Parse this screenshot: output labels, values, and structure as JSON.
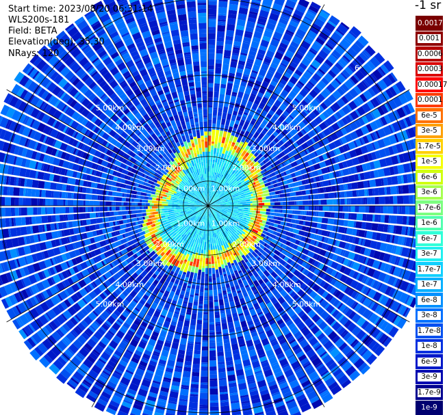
{
  "header": {
    "start_time": "Start time: 2023/08/20 06:31:14",
    "instrument": "WLS200s-181",
    "field": "Field: BETA",
    "elevation": "Elevation(deg): 35.30",
    "nrays": "NRays: 120"
  },
  "colorbar": {
    "title": "-1 sr",
    "labels": [
      "0.0017",
      "0.001",
      "0.0006",
      "0.0003",
      "0.00017",
      "0.0001",
      "6e-5",
      "3e-5",
      "1.7e-5",
      "1e-5",
      "6e-6",
      "3e-6",
      "1.7e-6",
      "1e-6",
      "6e-7",
      "3e-7",
      "1.7e-7",
      "1e-7",
      "6e-8",
      "3e-8",
      "1.7e-8",
      "1e-8",
      "6e-9",
      "3e-9",
      "1.7e-9",
      "1e-9"
    ],
    "colors": [
      "#7a0000",
      "#8e0000",
      "#b40000",
      "#da0000",
      "#ff0000",
      "#ff3a00",
      "#ff7000",
      "#ffa000",
      "#ffd000",
      "#f5ff00",
      "#d0ff10",
      "#a6ff50",
      "#7cff80",
      "#50ffb0",
      "#30ffd8",
      "#20f0f0",
      "#10d0ff",
      "#00b0ff",
      "#0090ff",
      "#0070ff",
      "#0050f0",
      "#0030e0",
      "#0018c8",
      "#0008b0",
      "#000090",
      "#000070"
    ]
  },
  "chart_data": {
    "type": "heatmap",
    "title": "",
    "field": "BETA",
    "units": "sr-1",
    "scale": "log",
    "value_range": [
      1e-09,
      0.0017
    ],
    "n_rays": 120,
    "elevation_deg": 35.3,
    "range_rings_labels": [
      "1.00km",
      "2.00km",
      "3.00km",
      "4.00km",
      "5.00km",
      "6"
    ],
    "range_rings_km": [
      1,
      2,
      3,
      4,
      5
    ],
    "spokes_deg": [
      0,
      30,
      60,
      90,
      120,
      150,
      180,
      210,
      240,
      270,
      300,
      330
    ],
    "features": {
      "background_level": 1e-08,
      "aerosol_ring_km": [
        1.6,
        2.3
      ],
      "aerosol_ring_level": 3e-05,
      "inner_level": 2e-07
    }
  }
}
